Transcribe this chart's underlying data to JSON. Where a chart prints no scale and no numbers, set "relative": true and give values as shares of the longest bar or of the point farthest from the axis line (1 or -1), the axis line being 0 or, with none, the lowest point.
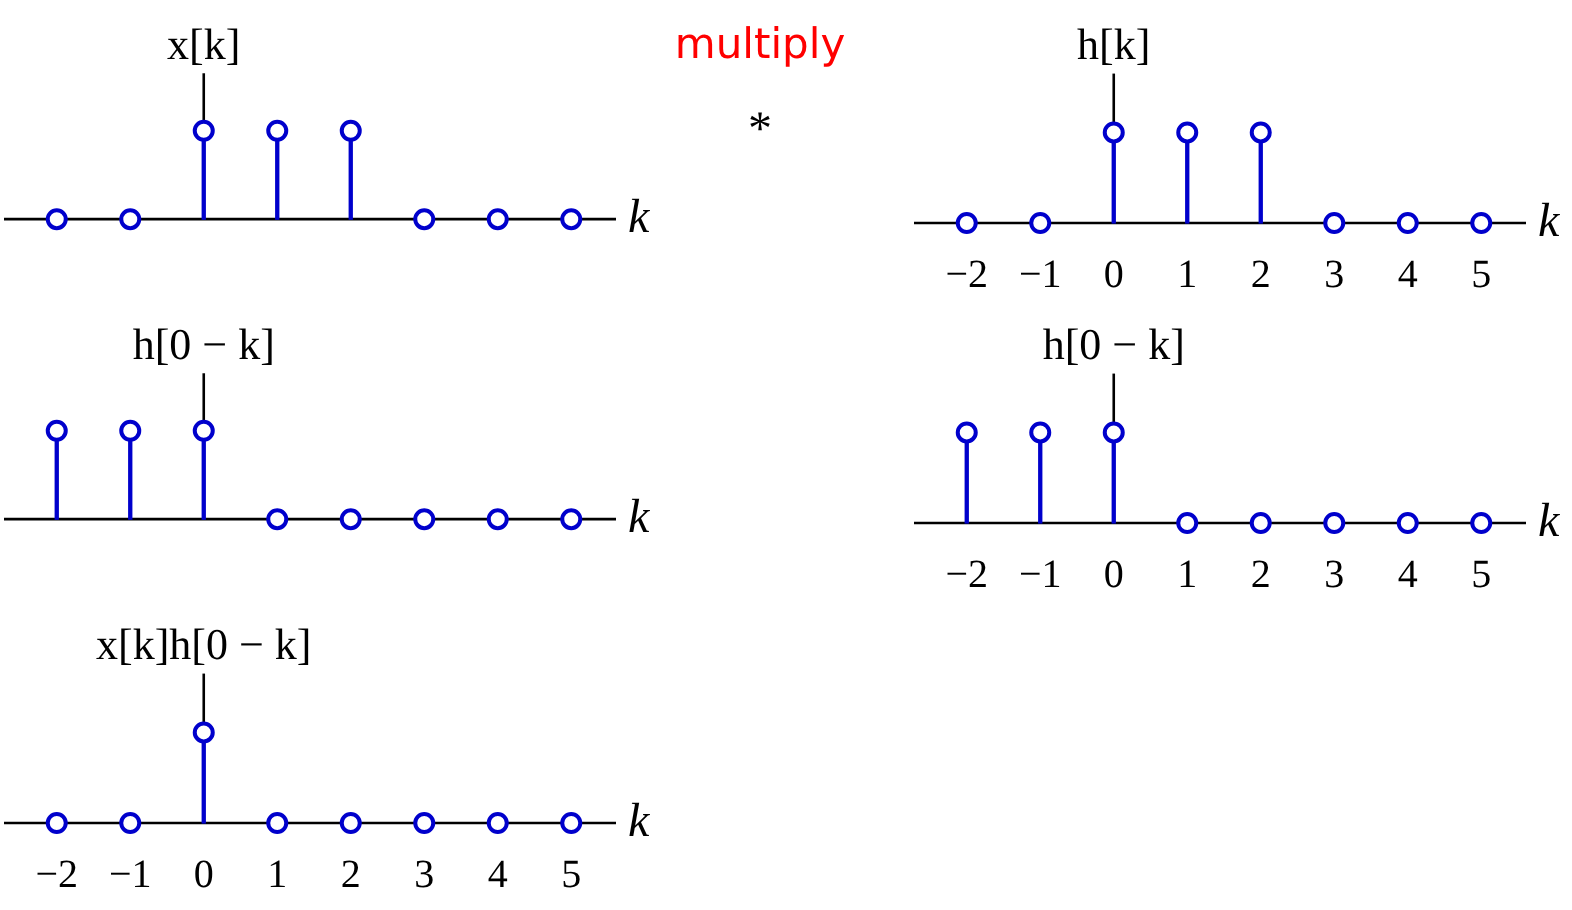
{
  "chart_data": [
    {
      "type": "lollipop",
      "title": "x[k]",
      "xlabel": "k",
      "relative": true,
      "marker": "circle",
      "tick_labels": false,
      "categories": [
        "−2",
        "−1",
        "0",
        "1",
        "2",
        "3",
        "4",
        "5"
      ],
      "series": [
        {
          "color": "#0000cc",
          "values": [
            0,
            0,
            1,
            1,
            1,
            0,
            0,
            0
          ]
        }
      ],
      "ref_lines": [
        {
          "axis": "x",
          "value": "0"
        }
      ],
      "annotations": [
        "multiply",
        "*"
      ]
    },
    {
      "type": "lollipop",
      "title": "h[k]",
      "xlabel": "k",
      "relative": true,
      "marker": "circle",
      "categories": [
        "−2",
        "−1",
        "0",
        "1",
        "2",
        "3",
        "4",
        "5"
      ],
      "series": [
        {
          "color": "#0000cc",
          "values": [
            0,
            0,
            1,
            1,
            1,
            0,
            0,
            0
          ]
        }
      ],
      "ref_lines": [
        {
          "axis": "x",
          "value": "0"
        }
      ]
    },
    {
      "type": "lollipop",
      "title": "h[0 − k]",
      "xlabel": "k",
      "relative": true,
      "marker": "circle",
      "tick_labels": false,
      "categories": [
        "−2",
        "−1",
        "0",
        "1",
        "2",
        "3",
        "4",
        "5"
      ],
      "series": [
        {
          "color": "#0000cc",
          "values": [
            1,
            1,
            1,
            0,
            0,
            0,
            0,
            0
          ]
        }
      ],
      "ref_lines": [
        {
          "axis": "x",
          "value": "0"
        }
      ]
    },
    {
      "type": "lollipop",
      "title": "h[0 − k]",
      "xlabel": "k",
      "relative": true,
      "marker": "circle",
      "categories": [
        "−2",
        "−1",
        "0",
        "1",
        "2",
        "3",
        "4",
        "5"
      ],
      "series": [
        {
          "color": "#0000cc",
          "values": [
            1,
            1,
            1,
            0,
            0,
            0,
            0,
            0
          ]
        }
      ],
      "ref_lines": [
        {
          "axis": "x",
          "value": "0"
        }
      ]
    },
    {
      "type": "lollipop",
      "title": "x[k]h[0 − k]",
      "xlabel": "k",
      "relative": true,
      "marker": "circle",
      "categories": [
        "−2",
        "−1",
        "0",
        "1",
        "2",
        "3",
        "4",
        "5"
      ],
      "series": [
        {
          "color": "#0000cc",
          "values": [
            0,
            0,
            1,
            0,
            0,
            0,
            0,
            0
          ]
        }
      ],
      "ref_lines": [
        {
          "axis": "x",
          "value": "0"
        }
      ]
    }
  ]
}
